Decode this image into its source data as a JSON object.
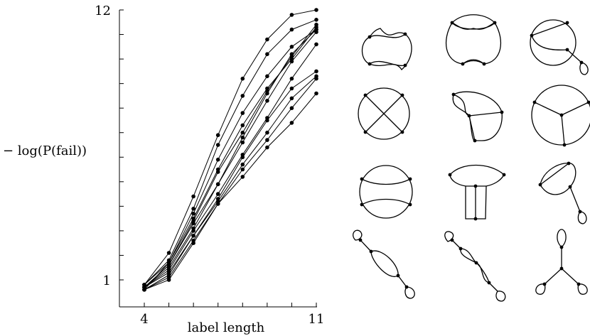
{
  "chart_data": {
    "type": "line",
    "xlabel": "label length",
    "ylabel": "− log(P(fail))",
    "x": [
      4,
      5,
      6,
      7,
      8,
      9,
      10,
      11
    ],
    "x_tick_labels": [
      "4",
      "11"
    ],
    "y_tick_labels": [
      "12",
      "1"
    ],
    "xlim": [
      4,
      11
    ],
    "ylim": [
      1,
      12
    ],
    "grid": false,
    "series": [
      {
        "values": [
          0.8,
          2.1,
          4.4,
          6.9,
          9.2,
          10.8,
          11.8,
          12.0
        ]
      },
      {
        "values": [
          0.8,
          1.8,
          3.9,
          6.5,
          8.5,
          10.2,
          11.2,
          11.6
        ]
      },
      {
        "values": [
          0.8,
          1.7,
          3.5,
          5.5,
          7.3,
          8.8,
          10.0,
          11.3
        ]
      },
      {
        "values": [
          0.7,
          1.6,
          3.3,
          4.9,
          6.8,
          8.6,
          10.2,
          11.2
        ]
      },
      {
        "values": [
          0.7,
          1.5,
          3.1,
          4.9,
          6.6,
          8.3,
          9.9,
          11.1
        ]
      },
      {
        "values": [
          0.7,
          1.4,
          3.0,
          4.5,
          6.1,
          7.6,
          9.2,
          10.6
        ]
      },
      {
        "values": [
          0.7,
          1.3,
          2.8,
          4.3,
          6.0,
          7.5,
          8.8,
          9.5
        ]
      },
      {
        "values": [
          0.6,
          1.2,
          2.8,
          4.2,
          5.7,
          7.0,
          8.4,
          9.3
        ]
      },
      {
        "values": [
          0.6,
          1.1,
          2.6,
          4.1,
          5.5,
          6.7,
          8.0,
          9.2
        ]
      },
      {
        "values": [
          0.6,
          1.0,
          2.5,
          4.1,
          5.2,
          6.4,
          7.4,
          8.6
        ]
      },
      {
        "values": [
          0.6,
          1.7,
          3.7,
          5.9,
          7.8,
          9.3,
          10.5,
          11.2
        ]
      },
      {
        "values": [
          0.7,
          1.6,
          3.4,
          5.4,
          7.0,
          8.7,
          10.1,
          11.4
        ]
      }
    ],
    "line_color": "#000000",
    "marker_color": "#000000"
  },
  "graph_grid": {
    "rows": 4,
    "cols": 3,
    "items": [
      "graph-2-2",
      "graph-2-3",
      "graph-2-4",
      "graph-3-1",
      "graph-3-2",
      "graph-3-3",
      "graph-4-1",
      "graph-4-2",
      "graph-4-3",
      "graph-5-1",
      "graph-5-2",
      "graph-5-3"
    ]
  }
}
